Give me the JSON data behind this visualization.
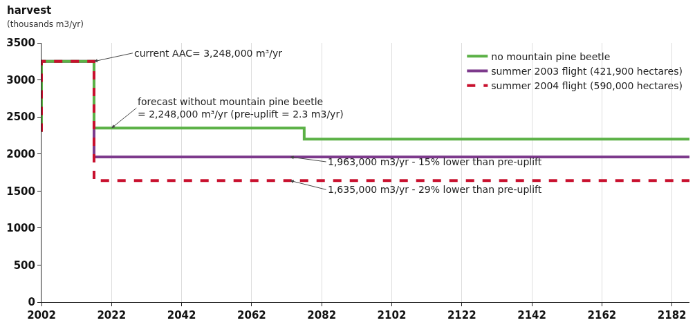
{
  "chart_data": {
    "type": "step",
    "title": "harvest",
    "subtitle": "(thousands m3/yr)",
    "series": [
      {
        "name": "no mountain pine beetle",
        "color": "#5bb146",
        "x": [
          2002,
          2002,
          2017,
          2077,
          2187
        ],
        "values": [
          2300,
          3250,
          2350,
          2200,
          2200
        ],
        "line_style": "solid"
      },
      {
        "name": "summer 2003 flight (421,900 hectares)",
        "color": "#7d3a8c",
        "x": [
          2002,
          2002,
          2017,
          2187
        ],
        "values": [
          2300,
          3250,
          1960,
          1960
        ],
        "line_style": "solid"
      },
      {
        "name": "summer 2004 flight (590,000 hectares)",
        "color": "#c8102e",
        "x": [
          2002,
          2002,
          2017,
          2187
        ],
        "values": [
          2300,
          3250,
          1640,
          1640
        ],
        "line_style": "dashed"
      }
    ],
    "annotations": [
      {
        "text": "current AAC= 3,248,000 m³/yr",
        "x": 2017,
        "y": 3250
      },
      {
        "text": "forecast without mountain pine beetle\n= 2,248,000 m³/yr (pre-uplift = 2.3 m3/yr)",
        "x": 2022,
        "y": 2350
      },
      {
        "text": "1,963,000 m3/yr - 15% lower than pre-uplift",
        "x": 2073,
        "y": 1960
      },
      {
        "text": "1,635,000 m3/yr - 29% lower than pre-uplift",
        "x": 2073,
        "y": 1640
      }
    ],
    "xlim": [
      2002,
      2187
    ],
    "xticks": [
      2002,
      2022,
      2042,
      2062,
      2082,
      2102,
      2122,
      2142,
      2162,
      2182
    ],
    "ylim": [
      0,
      3500
    ],
    "yticks": [
      0,
      500,
      1000,
      1500,
      2000,
      2500,
      3000,
      3500
    ],
    "grid": "x",
    "legend": "top right"
  }
}
